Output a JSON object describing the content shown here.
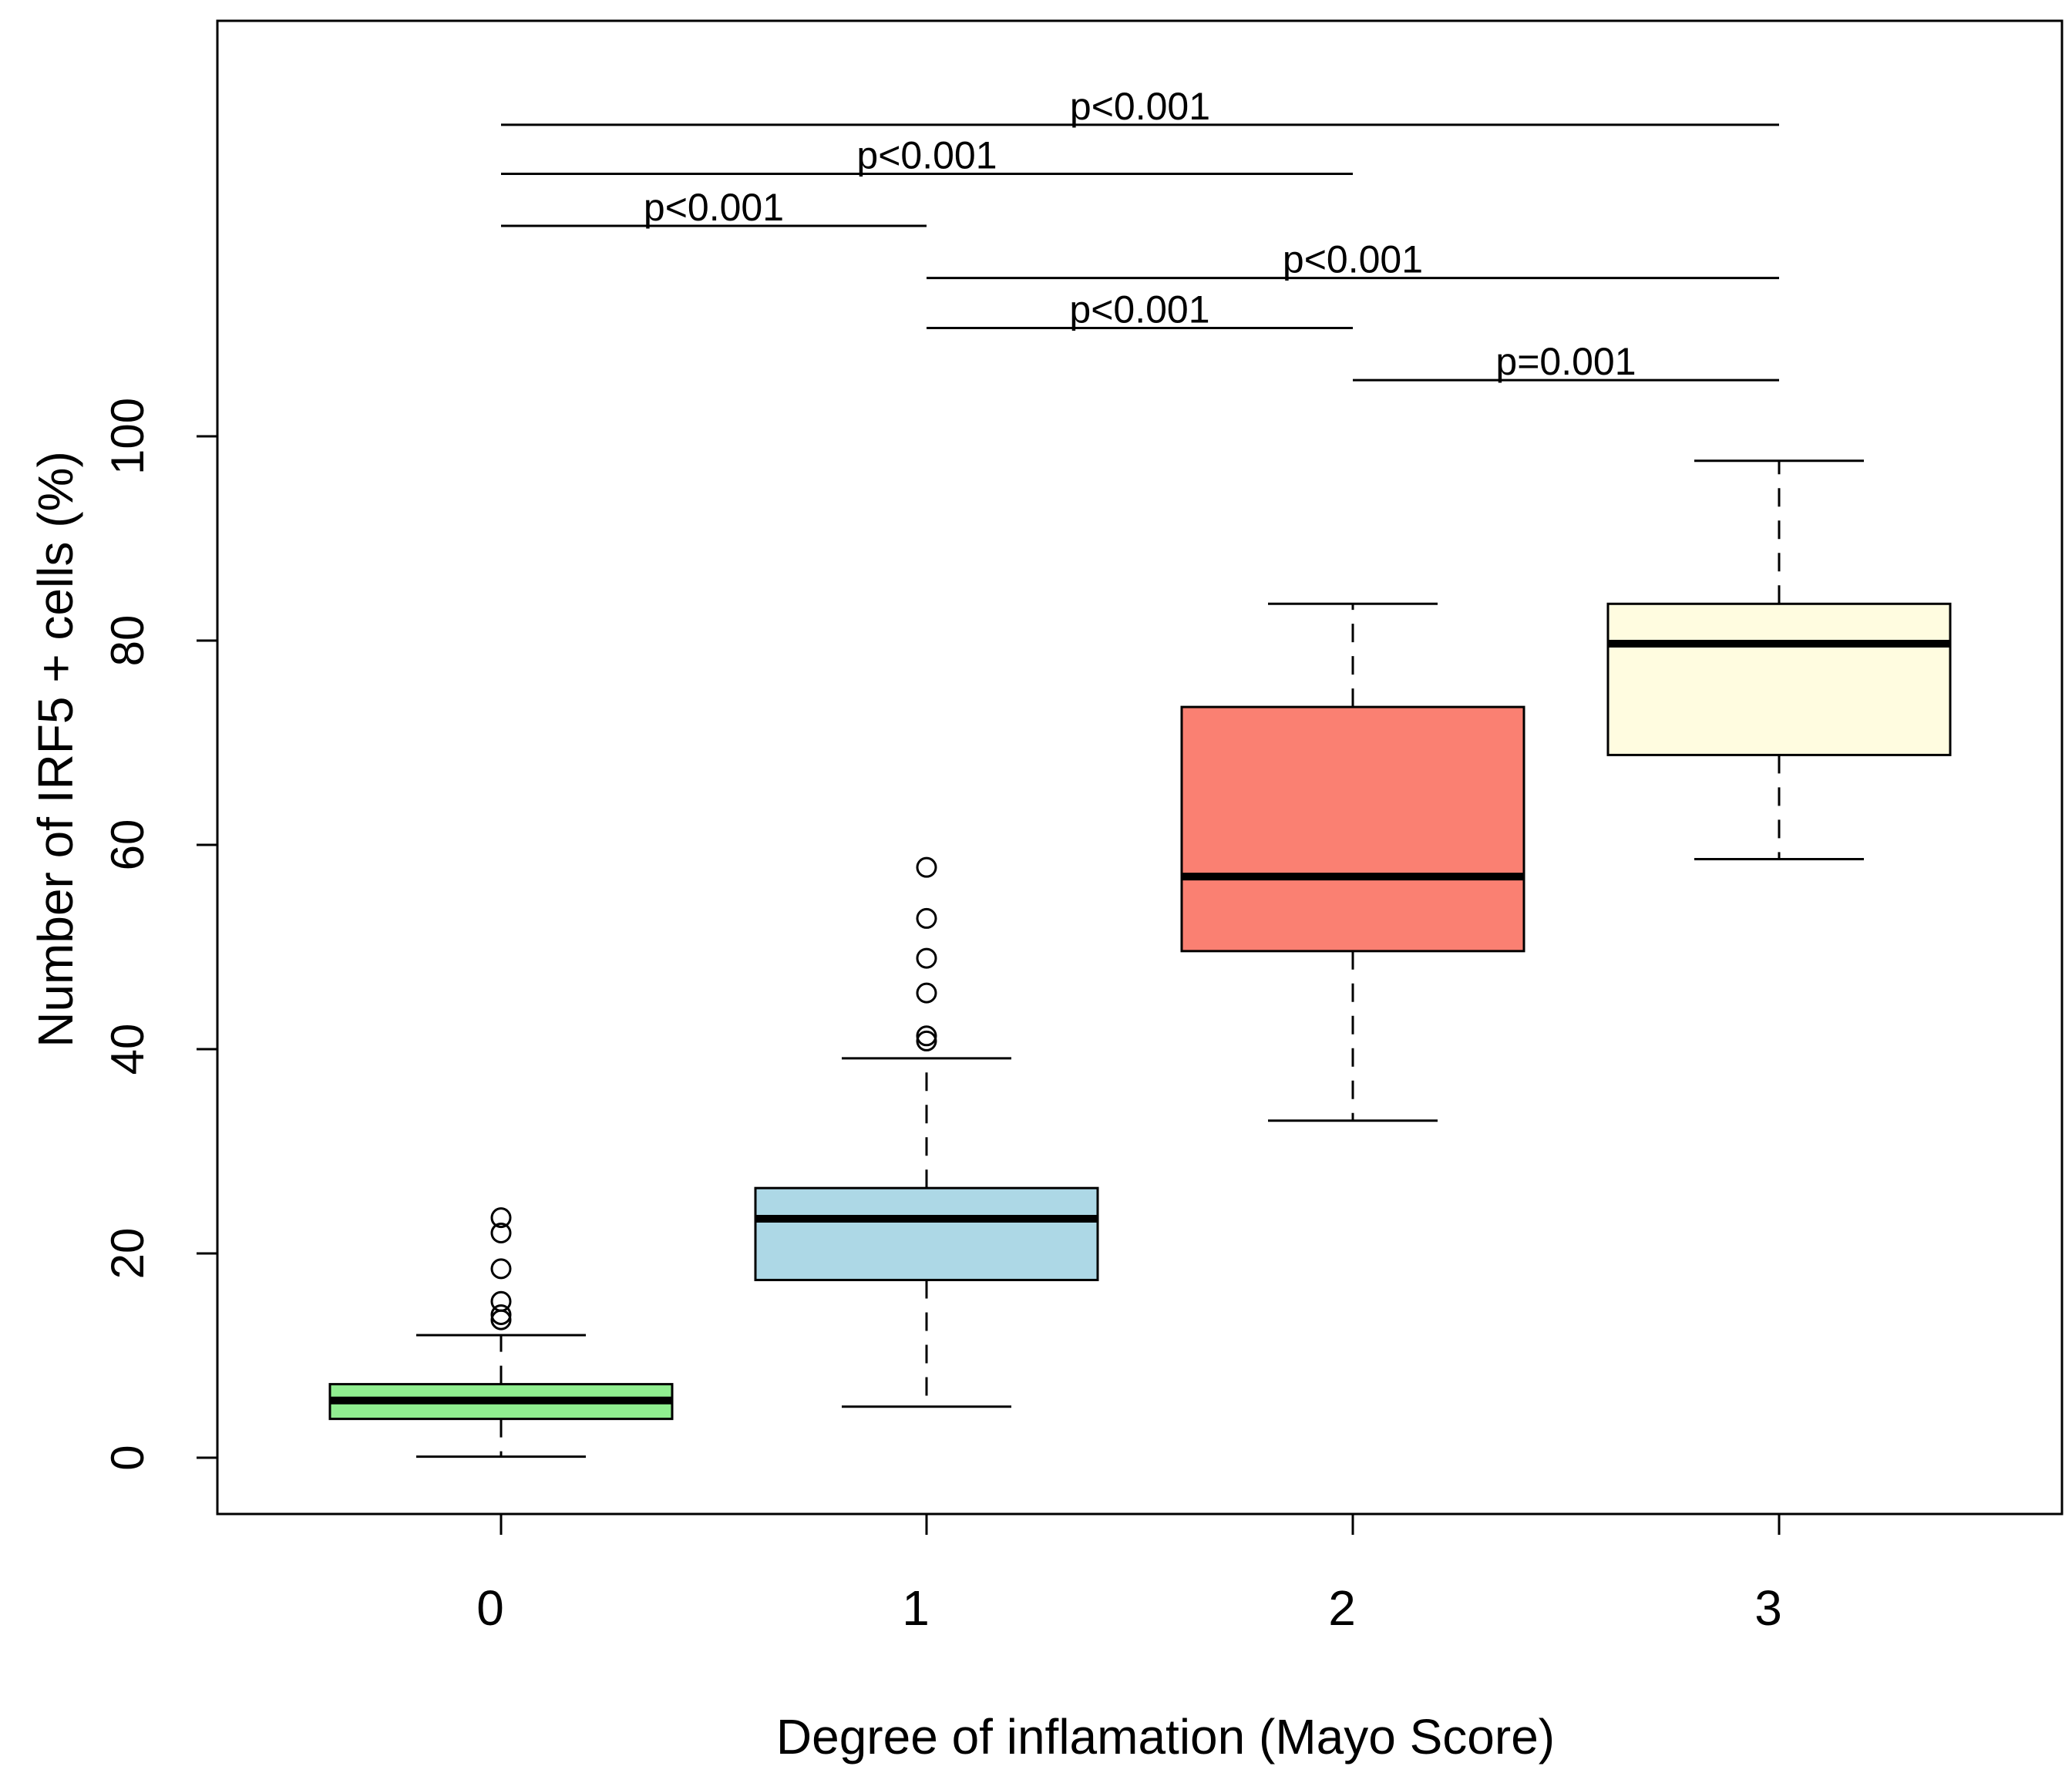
{
  "chart_data": {
    "type": "box",
    "xlabel": "Degree of inflamation (Mayo Score)",
    "ylabel": "Number of IRF5 + cells (%)",
    "ylim": [
      -5.5,
      140
    ],
    "yticks": [
      0,
      20,
      40,
      60,
      80,
      100
    ],
    "categories": [
      "0",
      "1",
      "2",
      "3"
    ],
    "boxes": [
      {
        "category": "0",
        "color": "#90EE90",
        "whisker_low": 0.1,
        "q1": 3.8,
        "median": 5.6,
        "q3": 7.2,
        "whisker_high": 12.0,
        "outliers": [
          13.5,
          14.0,
          15.3,
          18.5,
          22.0,
          23.5
        ]
      },
      {
        "category": "1",
        "color": "#ADD8E6",
        "whisker_low": 5.0,
        "q1": 17.4,
        "median": 23.4,
        "q3": 26.4,
        "whisker_high": 39.1,
        "outliers": [
          40.8,
          41.3,
          45.5,
          48.9,
          52.8,
          57.8
        ]
      },
      {
        "category": "2",
        "color": "#FA8072",
        "whisker_low": 33.0,
        "q1": 49.6,
        "median": 56.9,
        "q3": 73.5,
        "whisker_high": 83.6,
        "outliers": []
      },
      {
        "category": "3",
        "color": "#FFFCE0",
        "whisker_low": 58.6,
        "q1": 68.8,
        "median": 79.7,
        "q3": 83.6,
        "whisker_high": 97.6,
        "outliers": []
      }
    ],
    "comparisons": [
      {
        "from": "0",
        "to": "3",
        "y": 130.5,
        "label": "p<0.001"
      },
      {
        "from": "0",
        "to": "2",
        "y": 125.7,
        "label": "p<0.001"
      },
      {
        "from": "0",
        "to": "1",
        "y": 120.6,
        "label": "p<0.001"
      },
      {
        "from": "1",
        "to": "3",
        "y": 115.5,
        "label": "p<0.001"
      },
      {
        "from": "1",
        "to": "2",
        "y": 110.6,
        "label": "p<0.001"
      },
      {
        "from": "2",
        "to": "3",
        "y": 105.5,
        "label": "p=0.001"
      }
    ]
  }
}
